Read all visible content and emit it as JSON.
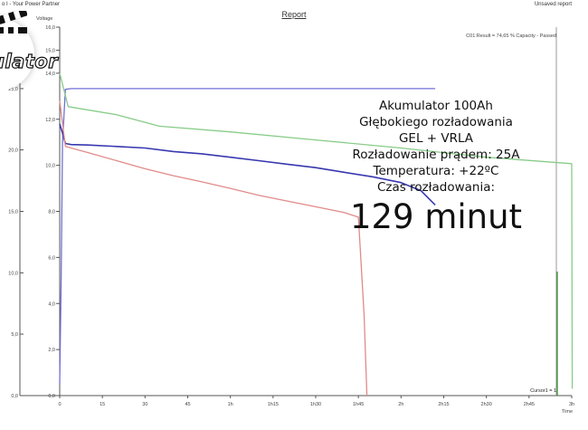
{
  "window": {
    "left_title": "o I - Your Power Partner",
    "title": "Report",
    "right_title": "Unsaved report"
  },
  "logo": {
    "text": "ulator"
  },
  "info": {
    "lines": [
      "Akumulator 100Ah",
      "Głębokiego rozładowania",
      "GEL + VRLA",
      "Rozładowanie prądem: 25A",
      "Temperatura: +22ºC",
      "Czas rozładowania:"
    ],
    "big": "129 minut"
  },
  "colors": {
    "voltage_blue": "#3838b0",
    "current_blue": "#7070d8",
    "green": "#88cc88",
    "red": "#e08a8a",
    "axis": "#555555"
  },
  "chart_data": {
    "type": "line",
    "title": "C01:Result = 74,65 % Capacity - Passed",
    "ylabel": "Voltage",
    "xlabel": "Time",
    "cursor_label": "Cursor1 = 1",
    "xlim": [
      0,
      180
    ],
    "ylim": [
      0,
      16
    ],
    "x_ticks": [
      {
        "value": 0,
        "label": "0"
      },
      {
        "value": 15,
        "label": "15"
      },
      {
        "value": 30,
        "label": "30"
      },
      {
        "value": 45,
        "label": "45"
      },
      {
        "value": 60,
        "label": "1h"
      },
      {
        "value": 75,
        "label": "1h15"
      },
      {
        "value": 90,
        "label": "1h30"
      },
      {
        "value": 105,
        "label": "1h45"
      },
      {
        "value": 120,
        "label": "2h"
      },
      {
        "value": 135,
        "label": "2h15"
      },
      {
        "value": 150,
        "label": "2h30"
      },
      {
        "value": 165,
        "label": "2h45"
      },
      {
        "value": 180,
        "label": "3h"
      }
    ],
    "inner_ticks": [
      {
        "value": 0,
        "label": "0,0"
      },
      {
        "value": 2,
        "label": "2,0"
      },
      {
        "value": 4,
        "label": "4,0"
      },
      {
        "value": 6,
        "label": "6,0"
      },
      {
        "value": 8,
        "label": "8,0"
      },
      {
        "value": 10,
        "label": "10,0"
      },
      {
        "value": 12,
        "label": "12,0"
      },
      {
        "value": 14,
        "label": "14,0"
      },
      {
        "value": 15,
        "label": "15,0"
      },
      {
        "value": 16,
        "label": "16,0"
      }
    ],
    "outer_ticks": [
      {
        "value": 0,
        "label": "0,0"
      },
      {
        "value": 2.67,
        "label": "5,0"
      },
      {
        "value": 5.33,
        "label": "10,0"
      },
      {
        "value": 8,
        "label": "15,0"
      },
      {
        "value": 10.67,
        "label": "20,0"
      },
      {
        "value": 13.33,
        "label": "25,0"
      }
    ],
    "series": [
      {
        "color": "#7070d8",
        "points": [
          [
            0,
            0.5
          ],
          [
            0.5,
            5
          ],
          [
            1,
            11
          ],
          [
            2,
            13.3
          ],
          [
            4,
            13.33
          ],
          [
            20,
            13.33
          ],
          [
            40,
            13.33
          ],
          [
            80,
            13.33
          ],
          [
            100,
            13.33
          ],
          [
            132,
            13.33
          ]
        ]
      },
      {
        "color": "#88cc88",
        "points": [
          [
            0,
            14.0
          ],
          [
            3,
            12.55
          ],
          [
            20,
            12.2
          ],
          [
            35,
            11.7
          ],
          [
            60,
            11.45
          ],
          [
            90,
            11.1
          ],
          [
            120,
            10.75
          ],
          [
            150,
            10.35
          ],
          [
            180,
            10.07
          ],
          [
            180.2,
            0.3
          ]
        ]
      },
      {
        "color": "#3838b0",
        "points": [
          [
            0,
            11.8
          ],
          [
            1,
            11.4
          ],
          [
            2,
            10.95
          ],
          [
            4,
            10.9
          ],
          [
            10,
            10.88
          ],
          [
            20,
            10.82
          ],
          [
            30,
            10.75
          ],
          [
            40,
            10.6
          ],
          [
            50,
            10.5
          ],
          [
            60,
            10.35
          ],
          [
            70,
            10.2
          ],
          [
            80,
            10.05
          ],
          [
            90,
            9.9
          ],
          [
            100,
            9.7
          ],
          [
            110,
            9.5
          ],
          [
            120,
            9.25
          ],
          [
            127,
            8.9
          ],
          [
            132,
            8.28
          ]
        ]
      },
      {
        "color": "#e08a8a",
        "points": [
          [
            0,
            12.8
          ],
          [
            2,
            10.82
          ],
          [
            10,
            10.55
          ],
          [
            20,
            10.2
          ],
          [
            30,
            9.85
          ],
          [
            40,
            9.55
          ],
          [
            50,
            9.28
          ],
          [
            60,
            9.0
          ],
          [
            70,
            8.7
          ],
          [
            80,
            8.45
          ],
          [
            90,
            8.2
          ],
          [
            100,
            7.95
          ],
          [
            105,
            7.75
          ],
          [
            107,
            3.5
          ],
          [
            108,
            0
          ]
        ]
      }
    ]
  }
}
